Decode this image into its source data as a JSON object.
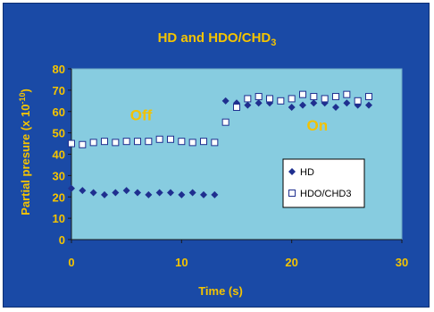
{
  "chart_data": {
    "type": "scatter",
    "title_main": "HD  and HDO/CHD",
    "title_sub": "3",
    "xlabel": "Time (s)",
    "ylabel_main": "Partial presure (x 10",
    "ylabel_exp": "-10",
    "ylabel_close": ")",
    "xlim": [
      0,
      30
    ],
    "ylim": [
      0,
      80
    ],
    "x_ticks": [
      "0",
      "10",
      "20",
      "30"
    ],
    "y_ticks": [
      "0",
      "10",
      "20",
      "30",
      "40",
      "50",
      "60",
      "70",
      "80"
    ],
    "annotations": [
      {
        "text": "Off",
        "x": 6,
        "y": 56
      },
      {
        "text": "On",
        "x": 22,
        "y": 51
      }
    ],
    "legend_position": "right-middle",
    "series": [
      {
        "name": "HD",
        "marker": "diamond",
        "color": "#1f2f8f",
        "x": [
          0,
          1,
          2,
          3,
          4,
          5,
          6,
          7,
          8,
          9,
          10,
          11,
          12,
          13,
          14,
          15,
          16,
          17,
          18,
          19,
          20,
          21,
          22,
          23,
          24,
          25,
          26,
          27
        ],
        "y": [
          24,
          23,
          22,
          21,
          22,
          23,
          22,
          21,
          22,
          22,
          21,
          22,
          21,
          21,
          65,
          64,
          63,
          64,
          64,
          65,
          62,
          63,
          64,
          64,
          62,
          64,
          63,
          63
        ]
      },
      {
        "name": "HDO/CHD3",
        "marker": "square",
        "color": "#ffffff",
        "x": [
          0,
          1,
          2,
          3,
          4,
          5,
          6,
          7,
          8,
          9,
          10,
          11,
          12,
          13,
          14,
          15,
          16,
          17,
          18,
          19,
          20,
          21,
          22,
          23,
          24,
          25,
          26,
          27
        ],
        "y": [
          45,
          44.5,
          45.5,
          46,
          45.5,
          46,
          46,
          46,
          47,
          47,
          46,
          45.5,
          46,
          45.5,
          55,
          62,
          66,
          67,
          66,
          65,
          66,
          68,
          67,
          66,
          67,
          68,
          65,
          67
        ]
      }
    ]
  },
  "colors": {
    "frame": "#1a4aa6",
    "plot_area": "#87cce0",
    "axis_text": "#f5c400",
    "annotation": "#f2c200",
    "title": "#f5c400"
  }
}
